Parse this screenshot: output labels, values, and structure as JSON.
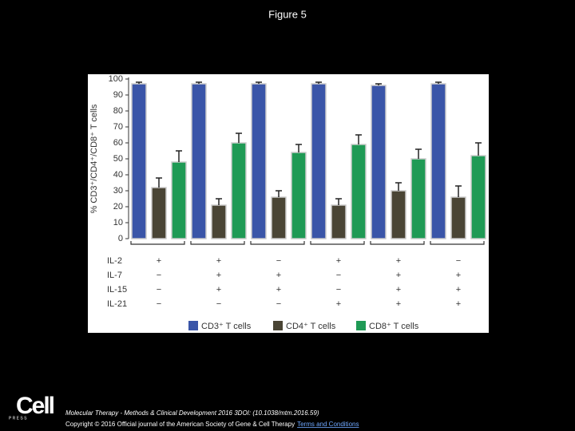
{
  "header": {
    "title": "Figure 5"
  },
  "chart_data": {
    "type": "bar",
    "y_label": "% CD3⁺/CD4⁺/CD8⁺ T cells",
    "ylim": [
      0,
      100
    ],
    "yticks": [
      0,
      10,
      20,
      30,
      40,
      50,
      60,
      70,
      80,
      90,
      100
    ],
    "series": [
      {
        "name": "CD3⁺ T cells",
        "color": "#3a55a8",
        "values": [
          97,
          97,
          97,
          97,
          96,
          97
        ],
        "errors": [
          1,
          1,
          1,
          1,
          1,
          1
        ]
      },
      {
        "name": "CD4⁺ T cells",
        "color": "#4a4535",
        "values": [
          32,
          21,
          26,
          21,
          30,
          26
        ],
        "errors": [
          6,
          4,
          4,
          4,
          5,
          7
        ]
      },
      {
        "name": "CD8⁺ T cells",
        "color": "#1f9a55",
        "values": [
          48,
          60,
          54,
          59,
          50,
          52
        ],
        "errors": [
          7,
          6,
          5,
          6,
          6,
          8
        ]
      }
    ],
    "conditions": [
      {
        "label": "IL-2",
        "values": [
          "+",
          "+",
          "−",
          "+",
          "+",
          "−"
        ]
      },
      {
        "label": "IL-7",
        "values": [
          "−",
          "+",
          "+",
          "−",
          "+",
          "+"
        ]
      },
      {
        "label": "IL-15",
        "values": [
          "−",
          "+",
          "+",
          "−",
          "+",
          "+"
        ]
      },
      {
        "label": "IL-21",
        "values": [
          "−",
          "−",
          "−",
          "+",
          "+",
          "+"
        ]
      }
    ]
  },
  "footer": {
    "logo": "Cell",
    "logo_sub": "P R E S S",
    "citation": "Molecular Therapy - Methods & Clinical Development 2016 3DOI: (10.1038/mtm.2016.59)",
    "copyright": "Copyright © 2016 Official journal of the American Society of Gene & Cell Therapy",
    "link": "Terms and Conditions"
  }
}
